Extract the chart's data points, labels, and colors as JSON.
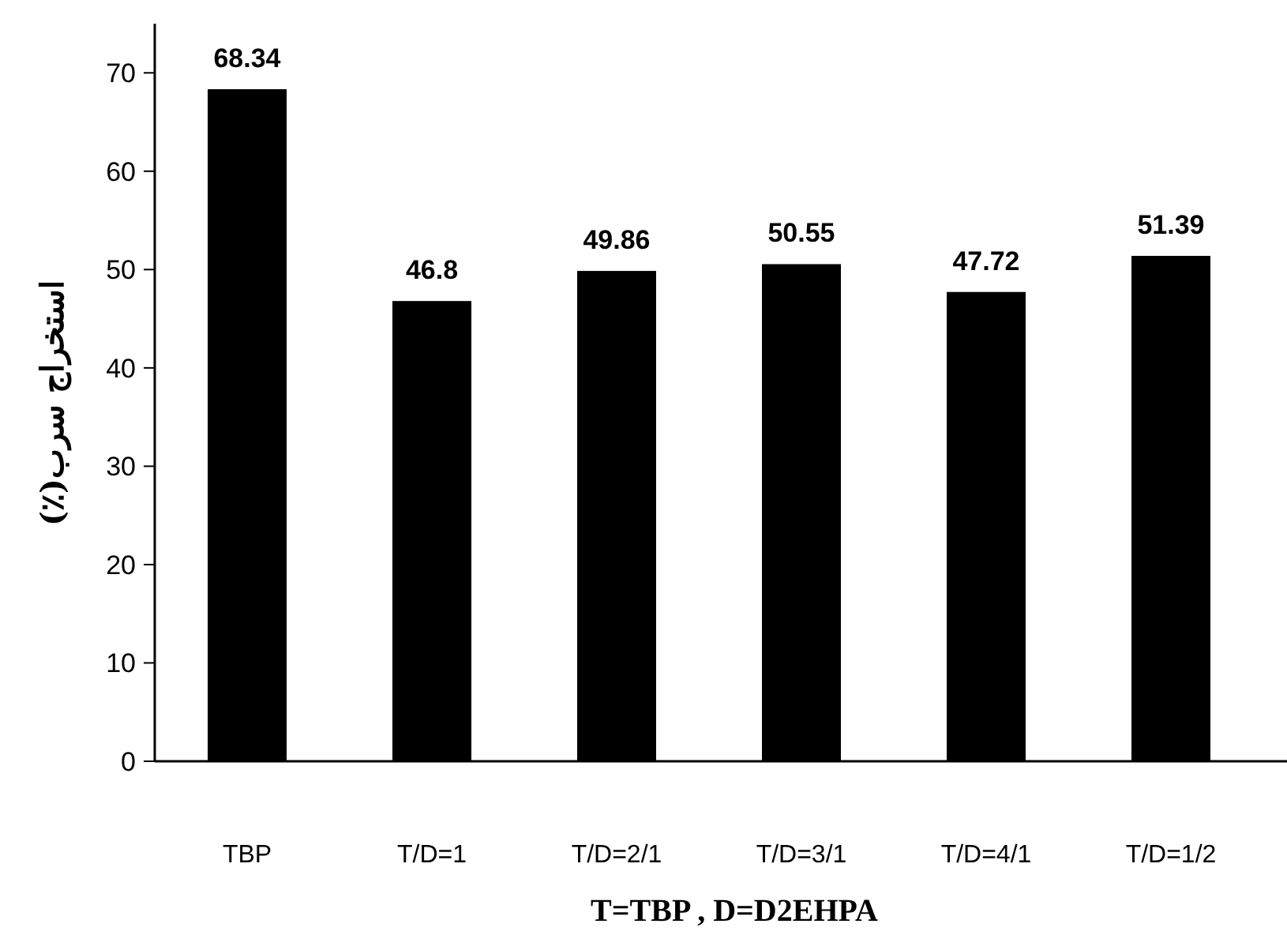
{
  "chart_data": {
    "type": "bar",
    "xlabel": "T=TBP , D=D2EHPA",
    "ylabel": "استخراج سرب(٪)",
    "categories": [
      "TBP",
      "T/D=1",
      "T/D=2/1",
      "T/D=3/1",
      "T/D=4/1",
      "T/D=1/2"
    ],
    "values": [
      68.34,
      46.8,
      49.86,
      50.55,
      47.72,
      51.39
    ],
    "color": "#000000",
    "ylim": [
      0,
      75
    ],
    "yticks": [
      0,
      10,
      20,
      30,
      40,
      50,
      60,
      70
    ],
    "data_labels": true,
    "grid": false
  }
}
